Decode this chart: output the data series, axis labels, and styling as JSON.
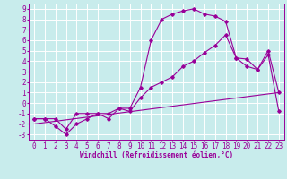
{
  "xlabel": "Windchill (Refroidissement éolien,°C)",
  "xlim": [
    -0.5,
    23.5
  ],
  "ylim": [
    -3.5,
    9.5
  ],
  "xticks": [
    0,
    1,
    2,
    3,
    4,
    5,
    6,
    7,
    8,
    9,
    10,
    11,
    12,
    13,
    14,
    15,
    16,
    17,
    18,
    19,
    20,
    21,
    22,
    23
  ],
  "yticks": [
    -3,
    -2,
    -1,
    0,
    1,
    2,
    3,
    4,
    5,
    6,
    7,
    8,
    9
  ],
  "bg_color": "#c8ecec",
  "line_color": "#990099",
  "grid_color": "#ffffff",
  "line1_x": [
    0,
    1,
    2,
    3,
    4,
    5,
    6,
    7,
    8,
    9,
    10,
    11,
    12,
    13,
    14,
    15,
    16,
    17,
    18,
    19,
    20,
    21,
    22,
    23
  ],
  "line1_y": [
    -1.5,
    -1.5,
    -1.5,
    -2.5,
    -1.0,
    -1.0,
    -1.0,
    -1.5,
    -0.5,
    -0.5,
    1.5,
    6.0,
    8.0,
    8.5,
    8.8,
    9.0,
    8.5,
    8.3,
    7.8,
    4.3,
    4.2,
    3.2,
    4.6,
    -0.8
  ],
  "line2_x": [
    0,
    1,
    2,
    3,
    4,
    5,
    6,
    7,
    8,
    9,
    10,
    11,
    12,
    13,
    14,
    15,
    16,
    17,
    18,
    19,
    20,
    21,
    22,
    23
  ],
  "line2_y": [
    -1.5,
    -1.5,
    -2.2,
    -3.0,
    -2.0,
    -1.5,
    -1.0,
    -1.0,
    -0.5,
    -0.8,
    0.5,
    1.5,
    2.0,
    2.5,
    3.5,
    4.0,
    4.8,
    5.5,
    6.5,
    4.3,
    3.5,
    3.2,
    5.0,
    1.0
  ],
  "line3_x": [
    0,
    23
  ],
  "line3_y": [
    -2.0,
    1.0
  ],
  "tick_fontsize": 5.5,
  "xlabel_fontsize": 5.5
}
